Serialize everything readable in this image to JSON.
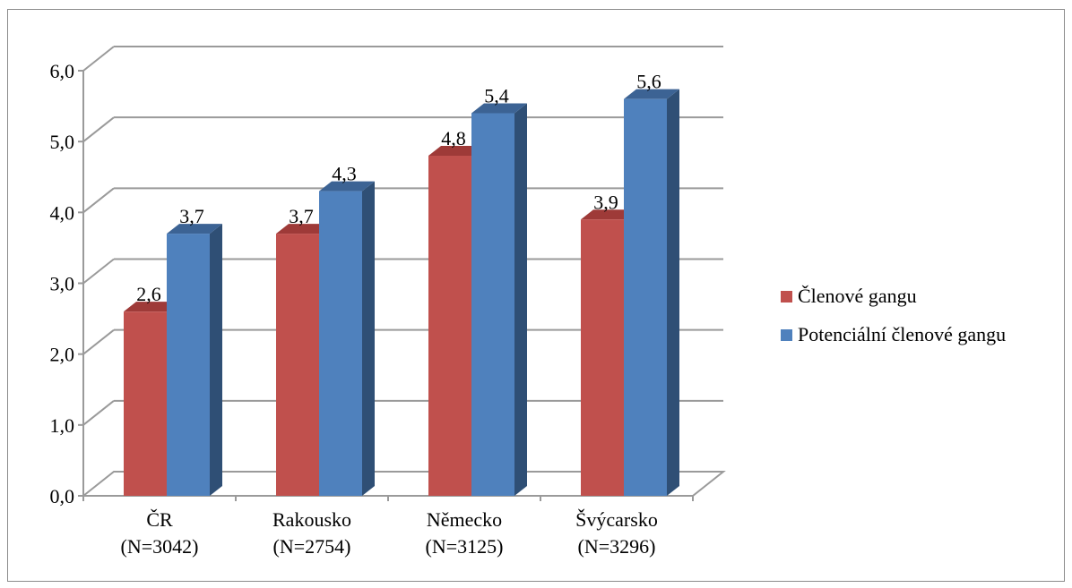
{
  "chart_data": {
    "type": "bar",
    "style": "3d-clustered-column",
    "categories": [
      "ČR\n(N=3042)",
      "Rakousko\n(N=2754)",
      "Německo\n(N=3125)",
      "Švýcarsko\n(N=3296)"
    ],
    "category_lines": [
      [
        "ČR",
        "(N=3042)"
      ],
      [
        "Rakousko",
        "(N=2754)"
      ],
      [
        "Německo",
        "(N=3125)"
      ],
      [
        "Švýcarsko",
        "(N=3296)"
      ]
    ],
    "series": [
      {
        "name": "Členové gangu",
        "values": [
          2.6,
          3.7,
          4.8,
          3.9
        ],
        "labels": [
          "2,6",
          "3,7",
          "4,8",
          "3,9"
        ],
        "color": "#C0504D",
        "side_color": "#8E3B39",
        "top_color": "#9E3A38"
      },
      {
        "name": "Potenciální členové gangu",
        "values": [
          3.7,
          4.3,
          5.4,
          5.6
        ],
        "labels": [
          "3,7",
          "4,3",
          "5,4",
          "5,6"
        ],
        "color": "#4F81BD",
        "side_color": "#2F4F75",
        "top_color": "#3C6394"
      }
    ],
    "ylim": [
      0,
      6
    ],
    "yticks": [
      0,
      1,
      2,
      3,
      4,
      5,
      6
    ],
    "ytick_labels": [
      "0,0",
      "1,0",
      "2,0",
      "3,0",
      "4,0",
      "5,0",
      "6,0"
    ],
    "grid": true,
    "legend_position": "right",
    "title": "",
    "xlabel": "",
    "ylabel": ""
  },
  "legend": {
    "items": [
      {
        "label": "Členové gangu",
        "color": "#C0504D"
      },
      {
        "label": "Potenciální členové gangu",
        "color": "#4F81BD"
      }
    ]
  }
}
